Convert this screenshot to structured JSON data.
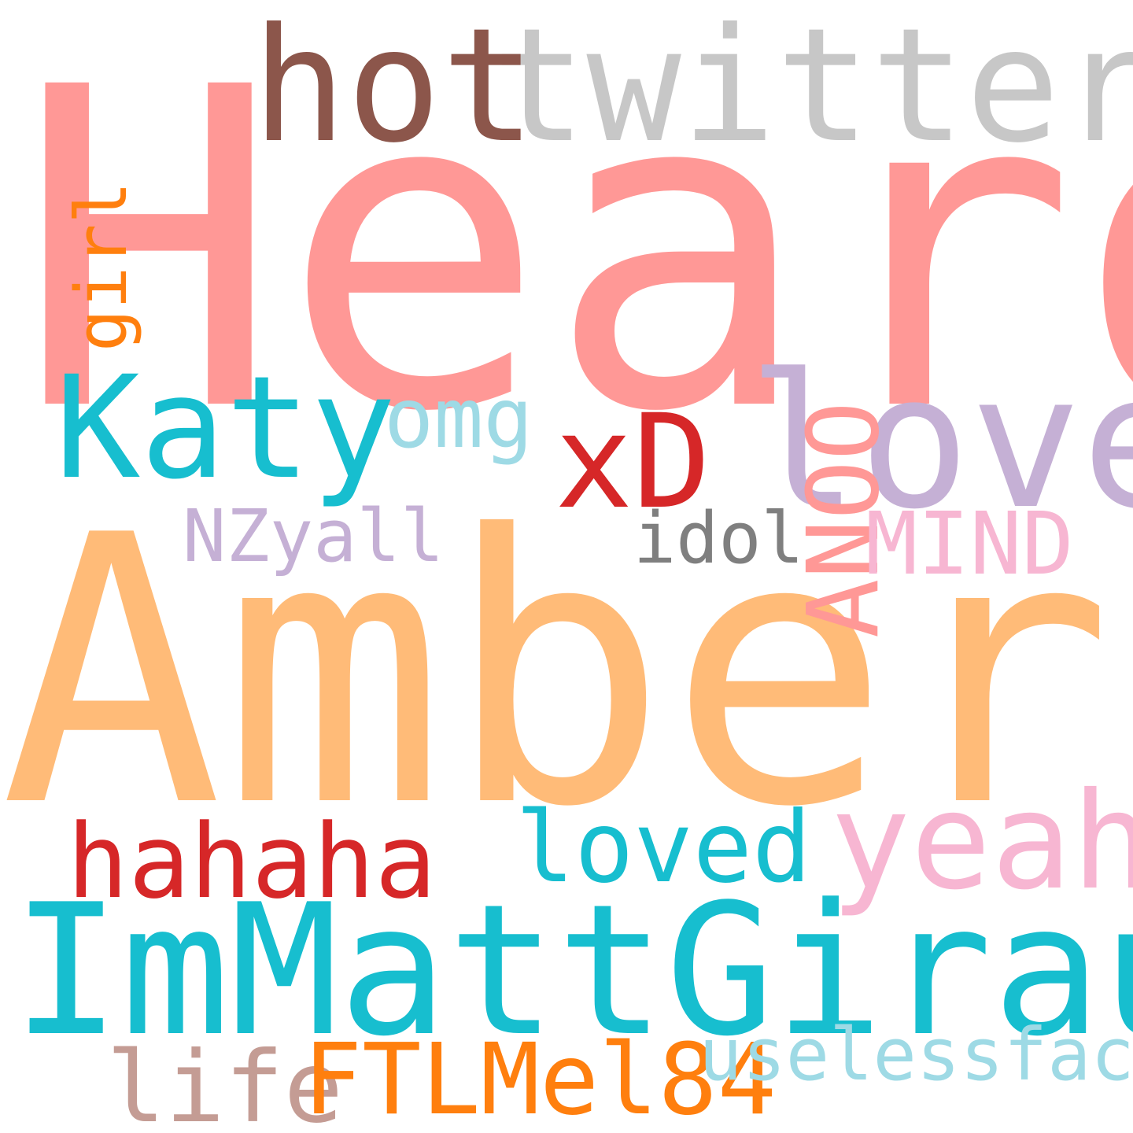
{
  "words": {
    "heard": {
      "text": "Heard",
      "color": "#ff9896"
    },
    "amber": {
      "text": "Amber",
      "color": "#ffbb78"
    },
    "immattgiraud": {
      "text": "ImMattGiraud",
      "color": "#17becf"
    },
    "twitter": {
      "text": "twitter",
      "color": "#c7c7c7"
    },
    "hot": {
      "text": "hot",
      "color": "#8c564b"
    },
    "love": {
      "text": "love",
      "color": "#c5b0d5"
    },
    "katy": {
      "text": "Katy",
      "color": "#17becf"
    },
    "xd": {
      "text": "xD",
      "color": "#d62728"
    },
    "omg": {
      "text": "omg",
      "color": "#9edae5"
    },
    "anoo": {
      "text": "ANOO",
      "color": "#ff9896"
    },
    "girl": {
      "text": "girl",
      "color": "#ff7f0e"
    },
    "mind": {
      "text": "MIND",
      "color": "#f7b6d2"
    },
    "nzyall": {
      "text": "NZyall",
      "color": "#c5b0d5"
    },
    "idol": {
      "text": "idol",
      "color": "#7f7f7f"
    },
    "yeah": {
      "text": "yeah",
      "color": "#f7b6d2"
    },
    "loved": {
      "text": "loved",
      "color": "#17becf"
    },
    "hahaha": {
      "text": "hahaha",
      "color": "#d62728"
    },
    "life": {
      "text": "life",
      "color": "#c49c94"
    },
    "ftlmel84": {
      "text": "FTLMel84",
      "color": "#ff7f0e"
    },
    "uselessfact": {
      "text": "uselessfact",
      "color": "#9edae5"
    }
  }
}
